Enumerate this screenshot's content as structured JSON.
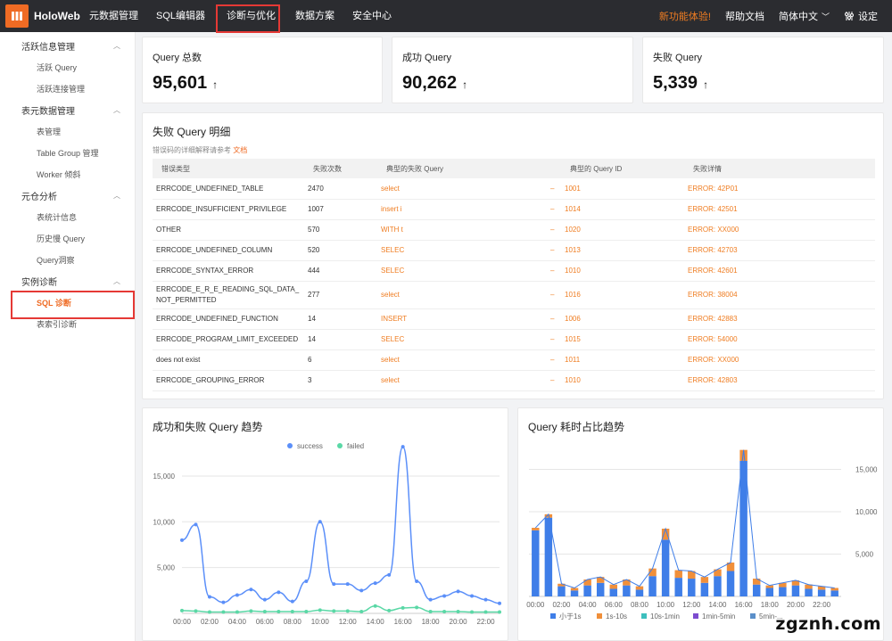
{
  "app": {
    "brand": "HoloWeb"
  },
  "nav": [
    "元数据管理",
    "SQL编辑器",
    "诊断与优化",
    "数据方案",
    "安全中心"
  ],
  "top_right": {
    "new_feature": "新功能体验!",
    "help": "帮助文档",
    "language": "简体中文",
    "settings": "设定"
  },
  "sidebar": [
    {
      "group": "活跃信息管理",
      "items": [
        "活跃 Query",
        "活跃连接管理"
      ]
    },
    {
      "group": "表元数据管理",
      "items": [
        "表管理",
        "Table Group 管理",
        "Worker 倾斜"
      ]
    },
    {
      "group": "元仓分析",
      "items": [
        "表统计信息",
        "历史慢 Query",
        "Query洞察"
      ]
    },
    {
      "group": "实例诊断",
      "items": [
        "SQL 诊断",
        "表索引诊断"
      ]
    }
  ],
  "stats": [
    {
      "label": "Query 总数",
      "value": "95,601",
      "arrow": "↑"
    },
    {
      "label": "成功 Query",
      "value": "90,262",
      "arrow": "↑"
    },
    {
      "label": "失败 Query",
      "value": "5,339",
      "arrow": "↑"
    }
  ],
  "failed_table": {
    "title": "失败 Query 明细",
    "hint": "错误码的详细解释请参考",
    "hint_link": "文档",
    "columns": [
      "错误类型",
      "失败次数",
      "典型的失败 Query",
      "典型的 Query ID",
      "失败详情"
    ],
    "rows": [
      {
        "type": "ERRCODE_UNDEFINED_TABLE",
        "count": "2470",
        "query": "select",
        "dash": "–",
        "id": "1001",
        "detail": "ERROR: 42P01"
      },
      {
        "type": "ERRCODE_INSUFFICIENT_PRIVILEGE",
        "count": "1007",
        "query": "insert i",
        "dash": "–",
        "id": "1014",
        "detail": "ERROR: 42501"
      },
      {
        "type": "OTHER",
        "count": "570",
        "query": "WITH t",
        "dash": "–",
        "id": "1020",
        "detail": "ERROR: XX000"
      },
      {
        "type": "ERRCODE_UNDEFINED_COLUMN",
        "count": "520",
        "query": "SELEC",
        "dash": "–",
        "id": "1013",
        "detail": "ERROR: 42703"
      },
      {
        "type": "ERRCODE_SYNTAX_ERROR",
        "count": "444",
        "query": "SELEC",
        "dash": "–",
        "id": "1010",
        "detail": "ERROR: 42601"
      },
      {
        "type": "ERRCODE_E_R_E_READING_SQL_DATA_NOT_PERMITTED",
        "count": "277",
        "query": "select",
        "dash": "–",
        "id": "1016",
        "detail": "ERROR: 38004"
      },
      {
        "type": "ERRCODE_UNDEFINED_FUNCTION",
        "count": "14",
        "query": "INSERT",
        "dash": "–",
        "id": "1006",
        "detail": "ERROR: 42883"
      },
      {
        "type": "ERRCODE_PROGRAM_LIMIT_EXCEEDED",
        "count": "14",
        "query": "SELEC",
        "dash": "–",
        "id": "1015",
        "detail": "ERROR: 54000"
      },
      {
        "type": "does not exist",
        "count": "6",
        "query": "select",
        "dash": "–",
        "id": "1011",
        "detail": "ERROR: XX000"
      },
      {
        "type": "ERRCODE_GROUPING_ERROR",
        "count": "3",
        "query": "select",
        "dash": "–",
        "id": "1010",
        "detail": "ERROR: 42803"
      }
    ]
  },
  "chart_data": [
    {
      "type": "line",
      "title": "成功和失败 Query 趋势",
      "x": [
        "00:00",
        "01:00",
        "02:00",
        "03:00",
        "04:00",
        "05:00",
        "06:00",
        "07:00",
        "08:00",
        "09:00",
        "10:00",
        "11:00",
        "12:00",
        "13:00",
        "14:00",
        "15:00",
        "16:00",
        "17:00",
        "18:00",
        "19:00",
        "20:00",
        "21:00",
        "22:00",
        "23:00"
      ],
      "x_tick_labels": [
        "00:00",
        "02:00",
        "04:00",
        "06:00",
        "08:00",
        "10:00",
        "12:00",
        "14:00",
        "16:00",
        "18:00",
        "20:00",
        "22:00"
      ],
      "series": [
        {
          "name": "success",
          "color": "#5b8ff9",
          "values": [
            8000,
            9700,
            1800,
            1200,
            2000,
            2600,
            1500,
            2300,
            1300,
            3500,
            10000,
            3200,
            3200,
            2500,
            3300,
            4200,
            18200,
            3500,
            1500,
            1900,
            2400,
            1900,
            1500,
            1100
          ]
        },
        {
          "name": "failed",
          "color": "#5ad8a6",
          "values": [
            300,
            250,
            150,
            150,
            150,
            250,
            200,
            200,
            200,
            200,
            350,
            250,
            250,
            200,
            800,
            300,
            600,
            650,
            200,
            200,
            200,
            150,
            150,
            150
          ]
        }
      ],
      "ylim": [
        0,
        18500
      ],
      "y_ticks": [
        5000,
        10000,
        15000
      ],
      "y_tick_labels": [
        "5,000",
        "10,000",
        "15,000"
      ],
      "legend": "top"
    },
    {
      "type": "bar",
      "title": "Query 耗时占比趋势",
      "stacked": true,
      "x": [
        "00:00",
        "01:00",
        "02:00",
        "03:00",
        "04:00",
        "05:00",
        "06:00",
        "07:00",
        "08:00",
        "09:00",
        "10:00",
        "11:00",
        "12:00",
        "13:00",
        "14:00",
        "15:00",
        "16:00",
        "17:00",
        "18:00",
        "19:00",
        "20:00",
        "21:00",
        "22:00",
        "23:00"
      ],
      "x_tick_labels": [
        "00:00",
        "02:00",
        "04:00",
        "06:00",
        "08:00",
        "10:00",
        "12:00",
        "14:00",
        "16:00",
        "18:00",
        "20:00",
        "22:00"
      ],
      "series": [
        {
          "name": "小于1s",
          "color": "#3f7ee8",
          "values": [
            7800,
            9300,
            1200,
            700,
            1300,
            1600,
            900,
            1300,
            800,
            2400,
            6700,
            2200,
            2100,
            1600,
            2400,
            3000,
            16000,
            1400,
            1000,
            1100,
            1300,
            900,
            800,
            700
          ]
        },
        {
          "name": "1s-10s",
          "color": "#f08f3a",
          "values": [
            300,
            400,
            300,
            300,
            700,
            700,
            500,
            700,
            400,
            900,
            1300,
            900,
            900,
            700,
            800,
            1000,
            1300,
            700,
            300,
            500,
            600,
            500,
            400,
            300
          ]
        },
        {
          "name": "10s-1min",
          "color": "#3dbfbd",
          "values": [
            0,
            0,
            0,
            0,
            0,
            0,
            0,
            0,
            0,
            0,
            0,
            0,
            0,
            0,
            0,
            0,
            0,
            0,
            0,
            0,
            0,
            0,
            0,
            0
          ]
        },
        {
          "name": "1min-5min",
          "color": "#7d4ccf",
          "values": [
            0,
            0,
            0,
            0,
            0,
            0,
            0,
            0,
            0,
            0,
            0,
            0,
            0,
            0,
            0,
            0,
            0,
            0,
            0,
            0,
            0,
            0,
            0,
            0
          ]
        },
        {
          "name": "5min-...",
          "color": "#5b8fc9",
          "values": [
            0,
            0,
            0,
            0,
            0,
            0,
            0,
            0,
            0,
            0,
            0,
            0,
            0,
            0,
            0,
            0,
            0,
            0,
            0,
            0,
            0,
            0,
            0,
            0
          ]
        }
      ],
      "ylim": [
        0,
        18000
      ],
      "y_ticks": [
        5000,
        10000,
        15000
      ],
      "y_tick_labels": [
        "5,000",
        "10,000",
        "15,000"
      ],
      "legend": "bottom"
    }
  ],
  "watermark": "zgznh.com"
}
